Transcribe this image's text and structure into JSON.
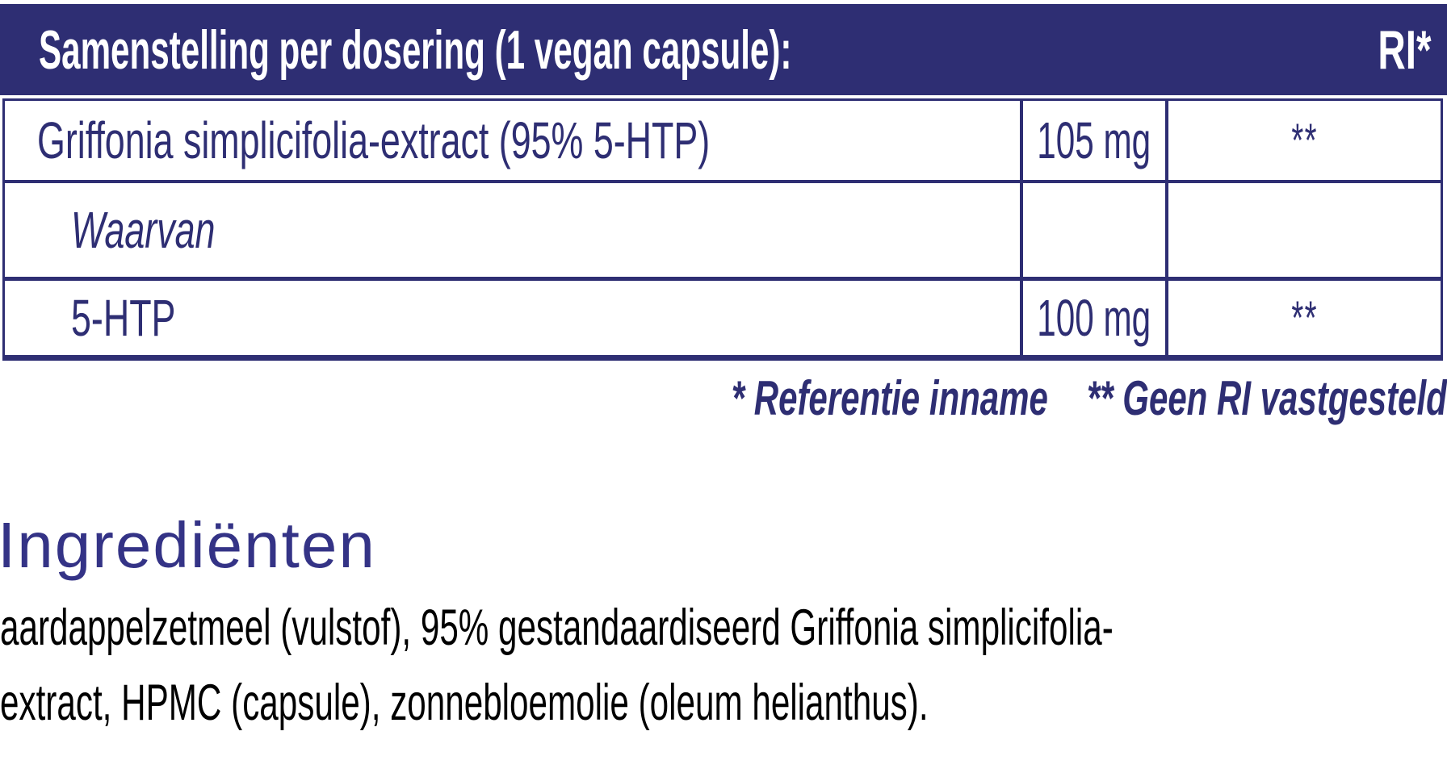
{
  "colors": {
    "accent_indigo": "#2E2E73",
    "heading_purple": "#343386",
    "header_text": "#FFFFFF",
    "body_text": "#000000"
  },
  "header": {
    "title": "Samenstelling per dosering (1 vegan capsule):",
    "ri": "RI*"
  },
  "table": {
    "rows": [
      {
        "name": "Griffonia simplicifolia-extract (95% 5-HTP)",
        "amount": "105 mg",
        "ri": "**"
      },
      {
        "name": "Waarvan",
        "amount": "",
        "ri": ""
      },
      {
        "name": "5-HTP",
        "amount": "100 mg",
        "ri": "**"
      }
    ]
  },
  "footnotes": {
    "reference_intake": "* Referentie inname",
    "no_ri_established": "** Geen RI vastgesteld"
  },
  "ingredients": {
    "heading": "Ingrediënten",
    "lines": [
      "aardappelzetmeel (vulstof), 95% gestandaardiseerd Griffonia simplicifolia-",
      "extract, HPMC (capsule), zonnebloemolie (oleum helianthus)."
    ]
  }
}
